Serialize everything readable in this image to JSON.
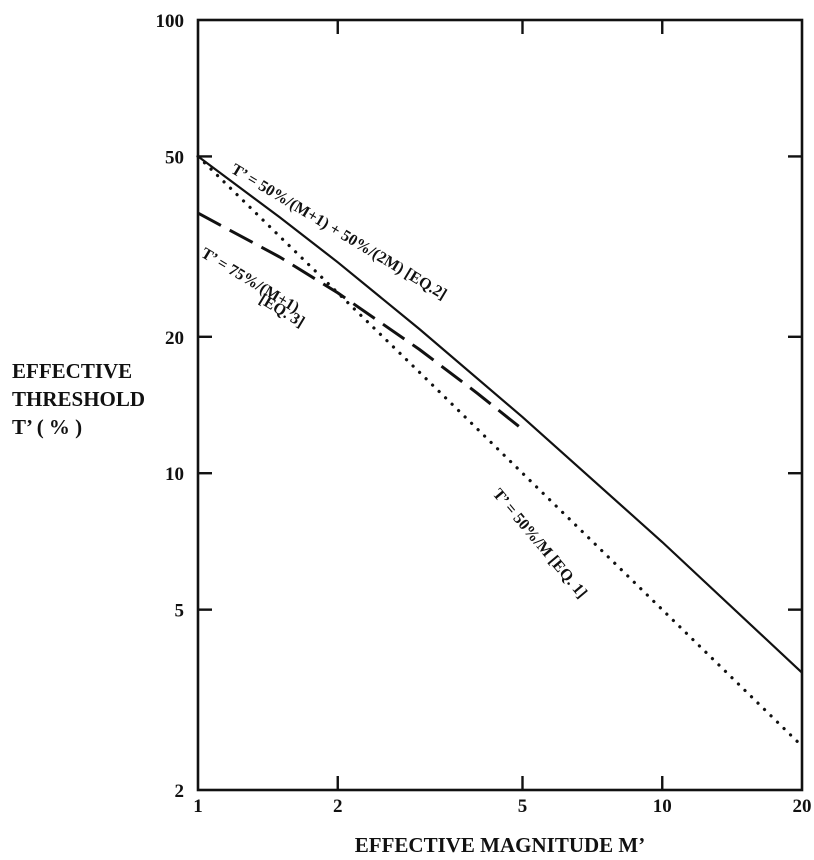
{
  "chart_data": {
    "type": "line",
    "title": "",
    "xlabel": "EFFECTIVE MAGNITUDE  M’",
    "ylabel_lines": [
      "EFFECTIVE",
      "THRESHOLD",
      "T’ ( % )"
    ],
    "x_scale": "log",
    "y_scale": "log",
    "xlim": [
      1,
      20
    ],
    "ylim": [
      2,
      100
    ],
    "x_ticks": [
      1,
      2,
      5,
      10,
      20
    ],
    "y_ticks": [
      2,
      5,
      10,
      20,
      50,
      100
    ],
    "grid": false,
    "legend": "none",
    "series": [
      {
        "label": "T’ = 50%/(M+1) + 50%/(2M)   [EQ.2]",
        "style": "solid",
        "x": [
          1,
          1.5,
          2,
          3,
          5,
          10,
          20
        ],
        "y": [
          50,
          36.7,
          29.2,
          20.8,
          13.3,
          7.05,
          3.63
        ]
      },
      {
        "label": "T’ = 75%/(M+1)\n[EQ. 3]",
        "style": "dashed",
        "x": [
          1,
          1.5,
          2,
          3,
          4,
          5
        ],
        "y": [
          37.5,
          30,
          25,
          18.75,
          15,
          12.5
        ]
      },
      {
        "label": "T’ = 50%/M   [EQ. 1]",
        "style": "dotted",
        "x": [
          1,
          1.5,
          2,
          3,
          5,
          10,
          20
        ],
        "y": [
          50,
          33.3,
          25,
          16.7,
          10,
          5,
          2.5
        ]
      }
    ]
  }
}
